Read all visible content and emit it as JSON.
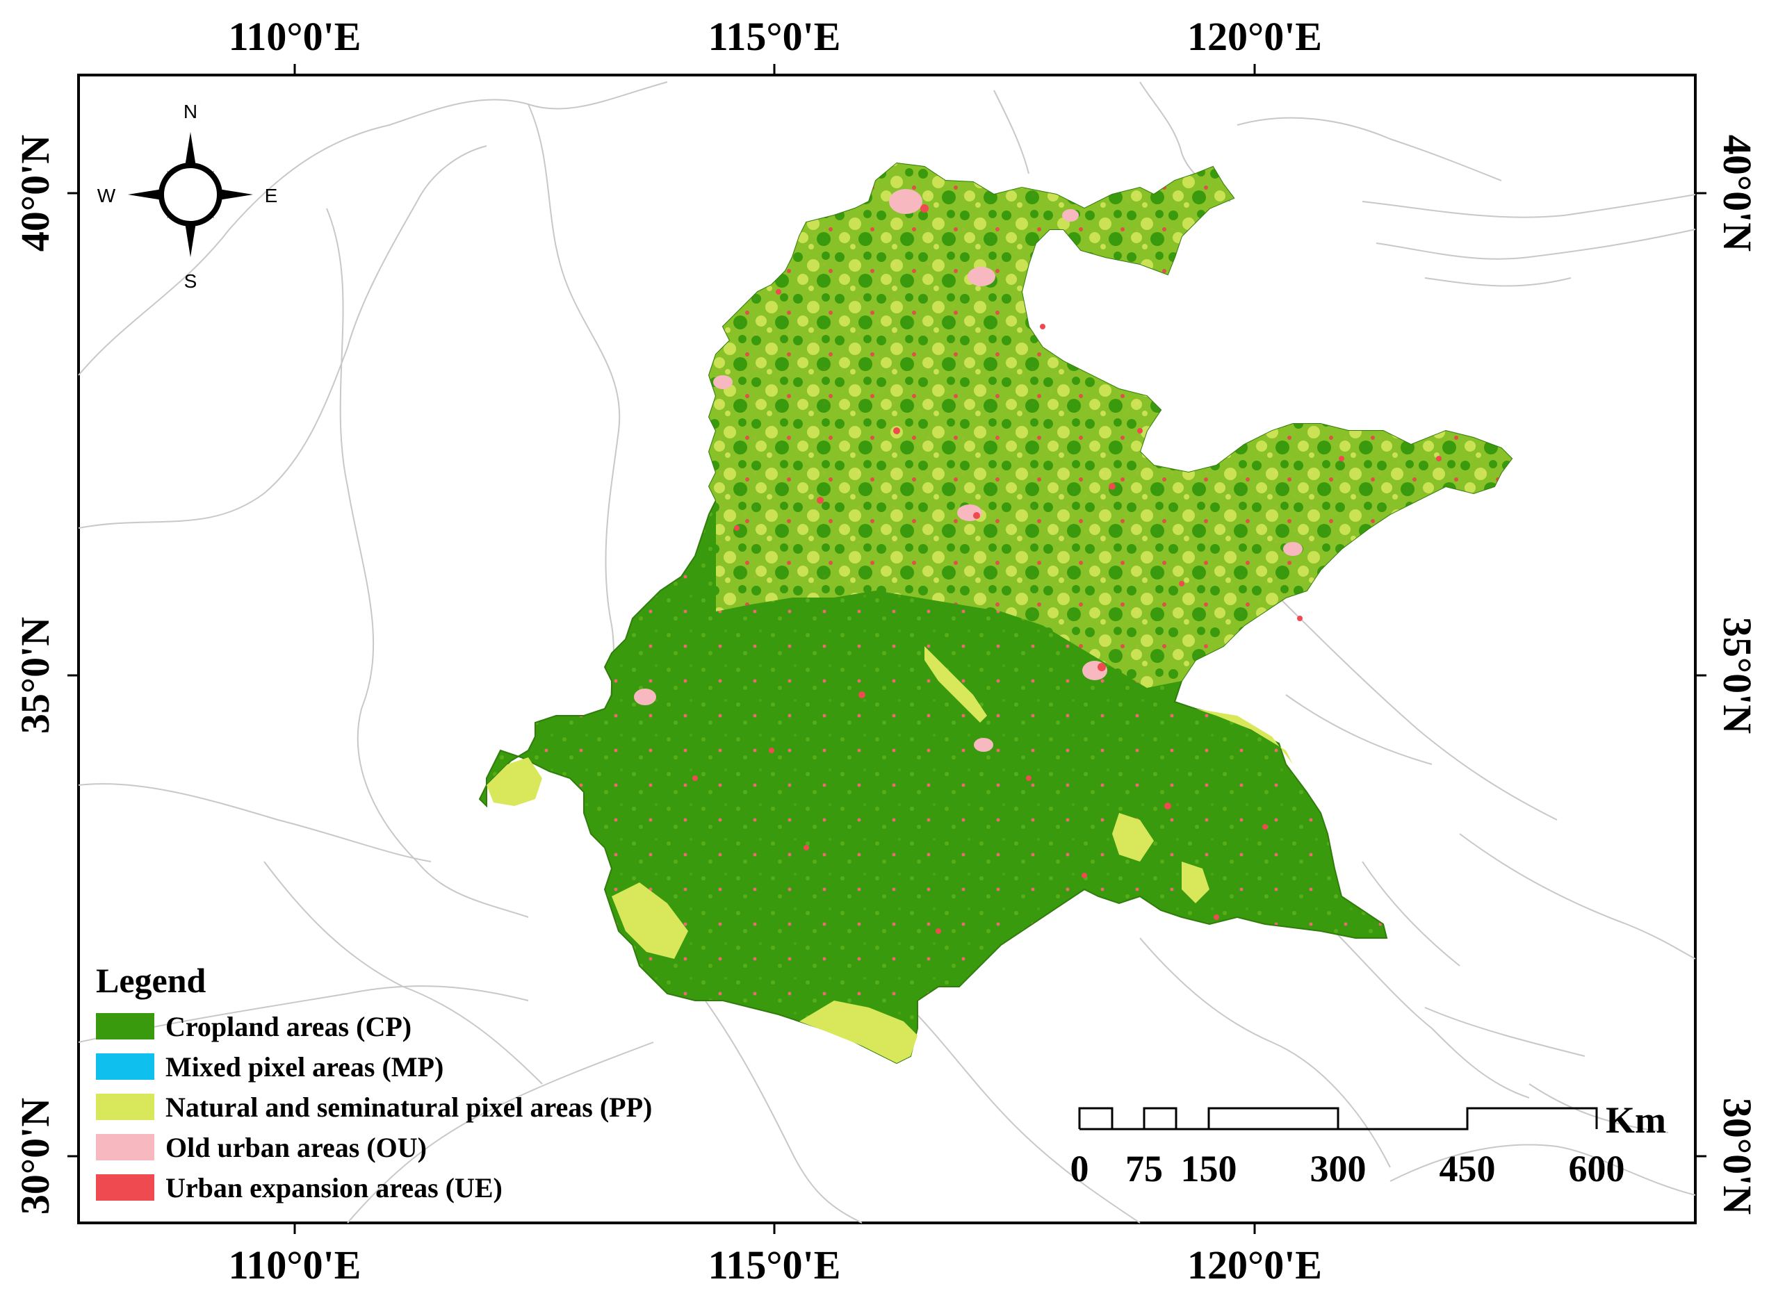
{
  "lon_labels": [
    "110°0'E",
    "115°0'E",
    "120°0'E"
  ],
  "lat_labels": [
    "40°0'N",
    "35°0'N",
    "30°0'N"
  ],
  "compass": {
    "n": "N",
    "s": "S",
    "e": "E",
    "w": "W"
  },
  "legend": {
    "title": "Legend",
    "items": [
      {
        "label": "Cropland areas (CP)",
        "color": "#3a9a0e"
      },
      {
        "label": "Mixed pixel areas (MP)",
        "color": "#0fbfee"
      },
      {
        "label": "Natural and seminatural pixel areas (PP)",
        "color": "#d8e85a"
      },
      {
        "label": "Old urban areas (OU)",
        "color": "#f7b8c0"
      },
      {
        "label": "Urban expansion areas (UE)",
        "color": "#ee4a50"
      }
    ]
  },
  "scale_bar": {
    "unit": "Km",
    "labels": [
      "0",
      "75",
      "150",
      "300",
      "450",
      "600"
    ]
  },
  "colors": {
    "cropland": "#3a9a0e",
    "natural": "#d8e85a",
    "old_urban": "#f7b8c0",
    "urban_expansion": "#ee4a50",
    "boundary": "#c8c8c8"
  }
}
